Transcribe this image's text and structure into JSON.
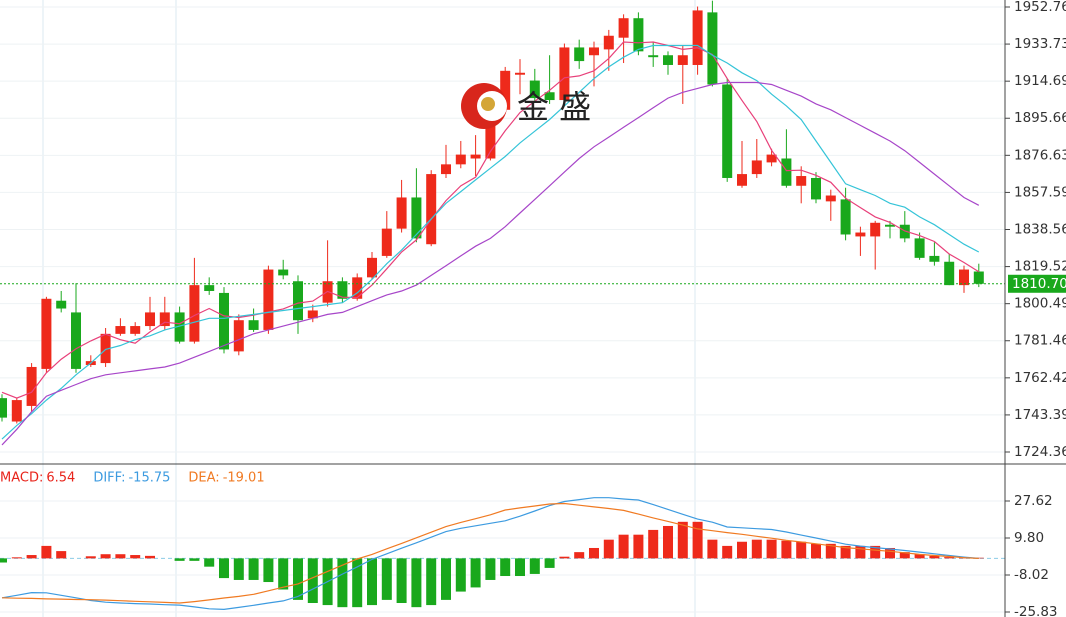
{
  "chart_data": [
    {
      "type": "candlestick",
      "watermark": "金 盛",
      "up_color": "#ee2a1b",
      "down_color": "#19a81c",
      "open": [
        1752,
        1740,
        1748,
        1767,
        1802,
        1796,
        1769,
        1770,
        1785,
        1785,
        1789,
        1789,
        1796,
        1781,
        1810,
        1806,
        1776,
        1792,
        1787,
        1818,
        1812,
        1793,
        1801,
        1812,
        1803,
        1814,
        1825,
        1839,
        1855,
        1831,
        1867,
        1872,
        1875,
        1875,
        1900,
        1918,
        1915,
        1909,
        1905,
        1932,
        1928,
        1931,
        1937,
        1947,
        1928,
        1928,
        1923,
        1923,
        1950,
        1913,
        1861,
        1867,
        1873,
        1875,
        1861,
        1865,
        1853,
        1854,
        1835,
        1835,
        1841,
        1841,
        1834,
        1825,
        1822,
        1810,
        1817
      ],
      "high": [
        1754,
        1752,
        1770,
        1804,
        1807,
        1811,
        1774,
        1788,
        1793,
        1791,
        1804,
        1804,
        1799,
        1824,
        1814,
        1809,
        1795,
        1798,
        1820,
        1823,
        1815,
        1800,
        1833,
        1814,
        1816,
        1827,
        1848,
        1864,
        1870,
        1869,
        1882,
        1884,
        1887,
        1912,
        1922,
        1926,
        1921,
        1928,
        1934,
        1936,
        1935,
        1941,
        1949,
        1950,
        1935,
        1930,
        1933,
        1953,
        1956,
        1916,
        1884,
        1885,
        1880,
        1890,
        1871,
        1868,
        1859,
        1860,
        1840,
        1843,
        1843,
        1848,
        1837,
        1832,
        1826,
        1820,
        1821
      ],
      "low": [
        1740,
        1739,
        1745,
        1765,
        1796,
        1765,
        1768,
        1768,
        1784,
        1784,
        1787,
        1787,
        1780,
        1780,
        1805,
        1775,
        1774,
        1786,
        1785,
        1813,
        1785,
        1791,
        1799,
        1801,
        1802,
        1813,
        1824,
        1837,
        1832,
        1830,
        1865,
        1870,
        1866,
        1874,
        1898,
        1908,
        1904,
        1903,
        1903,
        1921,
        1912,
        1920,
        1924,
        1928,
        1922,
        1918,
        1903,
        1918,
        1912,
        1863,
        1860,
        1865,
        1871,
        1860,
        1852,
        1852,
        1843,
        1833,
        1825,
        1818,
        1834,
        1832,
        1823,
        1820,
        1810,
        1806,
        1809
      ],
      "close": [
        1742,
        1751,
        1768,
        1803,
        1798,
        1767,
        1771,
        1785,
        1789,
        1789,
        1796,
        1796,
        1781,
        1810,
        1807,
        1777,
        1792,
        1787,
        1818,
        1815,
        1792,
        1797,
        1812,
        1803,
        1814,
        1824,
        1839,
        1855,
        1834,
        1867,
        1872,
        1877,
        1877,
        1900,
        1920,
        1919,
        1906,
        1905,
        1932,
        1925,
        1932,
        1938,
        1947,
        1930,
        1927,
        1923,
        1928,
        1951,
        1913,
        1865,
        1867,
        1874,
        1877,
        1861,
        1866,
        1854,
        1856,
        1836,
        1837,
        1842,
        1840,
        1834,
        1824,
        1822,
        1810,
        1818,
        1810.7
      ],
      "lines": [
        {
          "color": "#e8407a",
          "values": [
            1755,
            1752,
            1755,
            1765,
            1772,
            1777.4,
            1781.4,
            1784.8,
            1782,
            1780.2,
            1786,
            1791,
            1790.2,
            1794.4,
            1798,
            1794.2,
            1793.4,
            1794.6,
            1796.2,
            1797.8,
            1800.8,
            1801.8,
            1806.8,
            1803.8,
            1803.6,
            1810,
            1818.4,
            1827,
            1833.2,
            1843.8,
            1853.4,
            1861,
            1865.4,
            1878.6,
            1889.2,
            1898.6,
            1904.4,
            1910,
            1916.4,
            1917.4,
            1920,
            1926.4,
            1934.8,
            1934.4,
            1934.8,
            1933,
            1931,
            1931.8,
            1928.4,
            1916,
            1904.8,
            1894,
            1879.2,
            1868.8,
            1869,
            1866.4,
            1862.8,
            1854.6,
            1849.8,
            1845,
            1842.2,
            1837.8,
            1835.4,
            1832.4,
            1826,
            1821.6,
            1816.9
          ]
        },
        {
          "color": "#35c4d8",
          "values": [
            1731,
            1738,
            1744,
            1751,
            1757,
            1764,
            1770,
            1777,
            1779,
            1782,
            1784,
            1787,
            1789,
            1791,
            1793,
            1793,
            1794,
            1795,
            1796,
            1797,
            1798,
            1799,
            1800,
            1801,
            1806,
            1813,
            1821,
            1828,
            1836,
            1844,
            1852,
            1858,
            1864,
            1870,
            1876,
            1883,
            1889,
            1895,
            1902,
            1909,
            1916,
            1922,
            1927,
            1931,
            1933,
            1933,
            1933,
            1933,
            1928,
            1924,
            1919,
            1915,
            1908,
            1902,
            1895,
            1884,
            1873,
            1862,
            1859,
            1856,
            1852,
            1850,
            1845,
            1841,
            1836,
            1831,
            1827
          ]
        },
        {
          "color": "#a746c9",
          "values": [
            1728,
            1736,
            1745,
            1753,
            1756,
            1759,
            1762,
            1764,
            1765,
            1766,
            1767,
            1768,
            1770,
            1773,
            1776,
            1779,
            1782,
            1785,
            1787,
            1789,
            1791,
            1793,
            1795,
            1796,
            1799,
            1802,
            1805,
            1807,
            1810,
            1815,
            1820,
            1825,
            1830,
            1834,
            1840,
            1847,
            1854,
            1861,
            1868,
            1875,
            1881,
            1886,
            1891,
            1896,
            1901,
            1906,
            1909,
            1911,
            1913,
            1914,
            1914,
            1914,
            1913,
            1910,
            1907,
            1903,
            1900,
            1896,
            1892,
            1888,
            1884,
            1879,
            1873,
            1867,
            1861,
            1855,
            1851
          ]
        }
      ],
      "last_price": {
        "value": 1810.7,
        "label": "1810.70"
      },
      "last_price_color": "#19a81c",
      "ylim": [
        1718.71,
        1956.35
      ],
      "yticks": [
        1952.76,
        1933.73,
        1914.69,
        1895.66,
        1876.63,
        1857.59,
        1838.56,
        1819.52,
        1800.49,
        1781.46,
        1762.42,
        1743.39,
        1724.36
      ],
      "grid": true
    },
    {
      "type": "macd",
      "legend": [
        {
          "label": "MACD:",
          "value": 6.54,
          "color": "#e8231a"
        },
        {
          "label": "DIFF:",
          "value": -15.75,
          "color": "#3d9be0"
        },
        {
          "label": "DEA:",
          "value": -19.01,
          "color": "#f07a22"
        }
      ],
      "up_color": "#ee2a1b",
      "down_color": "#19a81c",
      "histogram": [
        -2,
        0.5,
        1.6,
        6,
        3.5,
        0,
        1,
        2,
        2,
        1.6,
        1.2,
        0,
        -1.2,
        -1.2,
        -4,
        -9.5,
        -10.4,
        -10.4,
        -11.4,
        -15,
        -20,
        -21.5,
        -22.5,
        -23.5,
        -23.5,
        -22.5,
        -20,
        -21.5,
        -23.5,
        -22.5,
        -20,
        -16,
        -14,
        -10.4,
        -8.5,
        -8.5,
        -7.5,
        -4.6,
        0.8,
        3,
        5,
        9,
        11.4,
        11.4,
        13.7,
        15.6,
        17.6,
        17.6,
        9,
        6,
        8,
        9,
        9,
        8.5,
        8,
        7,
        7,
        6,
        6,
        6,
        5,
        3,
        2,
        1.2,
        0.6,
        0.4,
        0.3
      ],
      "series": [
        {
          "name": "DIFF",
          "color": "#3d9be0",
          "values": [
            -19,
            -17.8,
            -16.5,
            -16.6,
            -17.8,
            -19,
            -20.3,
            -21.1,
            -21.5,
            -21.8,
            -22,
            -22.3,
            -22.5,
            -23.4,
            -24.3,
            -24.6,
            -23.6,
            -22.6,
            -21.5,
            -20.5,
            -18.3,
            -14.8,
            -11.2,
            -7.6,
            -4.1,
            -0.5,
            2.2,
            4.9,
            7.5,
            10.2,
            12.9,
            14.5,
            15.7,
            16.9,
            18.1,
            20.3,
            22.8,
            25.4,
            27.4,
            28.3,
            29.2,
            29.2,
            28.6,
            28.1,
            25.9,
            23.6,
            21.2,
            18.9,
            17.4,
            15.1,
            14.7,
            14.3,
            13.9,
            12.7,
            11.2,
            9.8,
            8.3,
            6.8,
            5.9,
            5.2,
            4.5,
            3.8,
            3,
            2.2,
            1.4,
            0.6,
            0
          ]
        },
        {
          "name": "DEA",
          "color": "#f07a22",
          "values": [
            -19,
            -19.2,
            -19.3,
            -19.5,
            -19.6,
            -19.8,
            -19.9,
            -20.1,
            -20.4,
            -20.7,
            -20.9,
            -21.2,
            -21.5,
            -20.8,
            -20,
            -19.1,
            -18.3,
            -17.3,
            -15.6,
            -13.9,
            -12.3,
            -9.3,
            -6.3,
            -3.3,
            -0.3,
            1.9,
            4.6,
            7.2,
            9.9,
            12.6,
            15.3,
            17.3,
            19.1,
            21,
            23.3,
            24.3,
            25.2,
            26.2,
            26.4,
            25.6,
            24.8,
            24,
            23.1,
            21.3,
            19.5,
            17.8,
            16,
            14.2,
            13.3,
            12.4,
            11.6,
            10.6,
            9.7,
            8.7,
            7.9,
            7,
            6.1,
            5.2,
            4.6,
            4,
            3.4,
            2.7,
            1.9,
            1.4,
            0.9,
            0.3,
            0
          ]
        }
      ],
      "ylim": [
        -28.24,
        44.96
      ],
      "yticks": [
        27.62,
        {
          "value": 9.8,
          "label": "9.80"
        },
        -8.02,
        -25.83
      ],
      "grid": true
    }
  ]
}
